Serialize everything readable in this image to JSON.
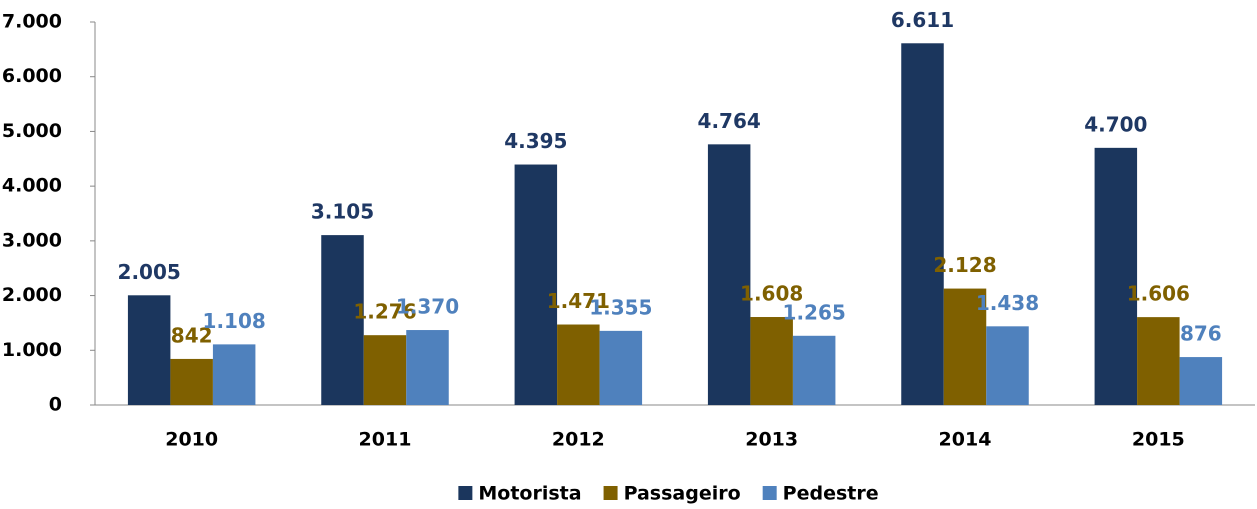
{
  "chart_data": {
    "type": "bar",
    "categories": [
      "2010",
      "2011",
      "2012",
      "2013",
      "2014",
      "2015"
    ],
    "series": [
      {
        "name": "Motorista",
        "color": "#1b365d",
        "label_color": "#1f3864",
        "values": [
          2005,
          3105,
          4395,
          4764,
          6611,
          4700
        ],
        "value_labels": [
          "2.005",
          "3.105",
          "4.395",
          "4.764",
          "6.611",
          "4.700"
        ]
      },
      {
        "name": "Passageiro",
        "color": "#7f6000",
        "label_color": "#7f6000",
        "values": [
          842,
          1276,
          1471,
          1608,
          2128,
          1606
        ],
        "value_labels": [
          "842",
          "1.276",
          "1.471",
          "1.608",
          "2.128",
          "1.606"
        ]
      },
      {
        "name": "Pedestre",
        "color": "#4f81bd",
        "label_color": "#4f81bd",
        "values": [
          1108,
          1370,
          1355,
          1265,
          1438,
          876
        ],
        "value_labels": [
          "1.108",
          "1.370",
          "1.355",
          "1.265",
          "1.438",
          "876"
        ]
      }
    ],
    "ylim": [
      0,
      7000
    ],
    "yticks": [
      0,
      {
        "value": 1000,
        "label": "1.000"
      },
      {
        "value": 2000,
        "label": "2.000"
      },
      {
        "value": 3000,
        "label": "3.000"
      },
      {
        "value": 4000,
        "label": "4.000"
      },
      {
        "value": 5000,
        "label": "5.000"
      },
      {
        "value": 6000,
        "label": "6.000"
      },
      {
        "value": 7000,
        "label": "7.000"
      }
    ],
    "grid": false,
    "legend": "bottom"
  }
}
